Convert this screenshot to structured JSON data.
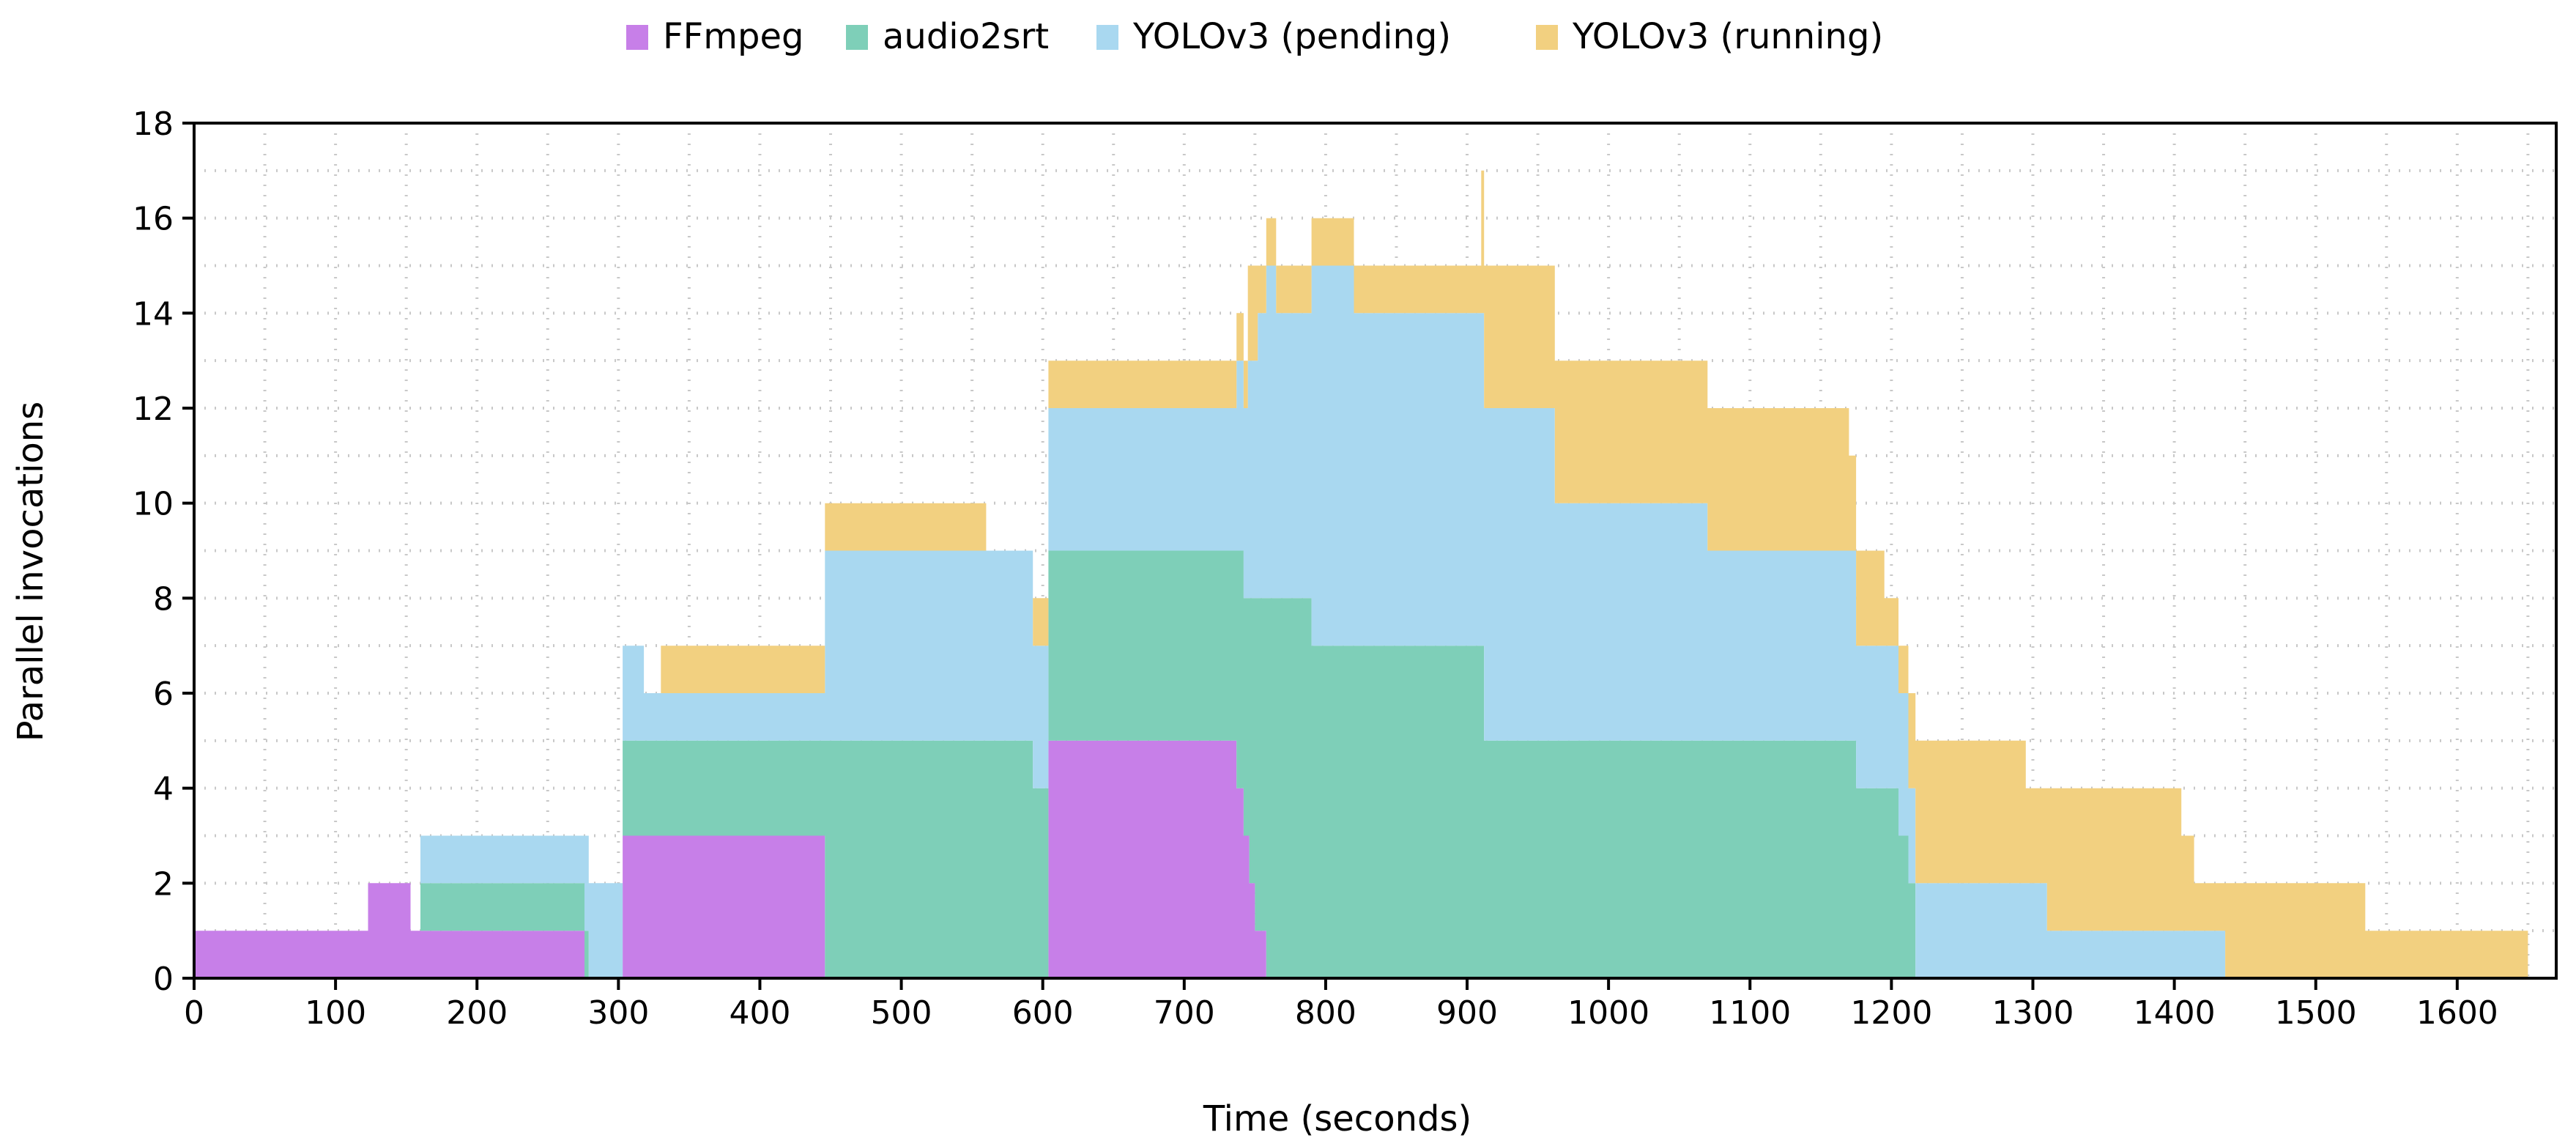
{
  "chart_data": {
    "type": "area",
    "stacked": true,
    "step": true,
    "title": "",
    "xlabel": "Time (seconds)",
    "ylabel": "Parallel invocations",
    "xlim": [
      0,
      1670
    ],
    "ylim": [
      0,
      18
    ],
    "x_ticks": [
      0,
      100,
      200,
      300,
      400,
      500,
      600,
      700,
      800,
      900,
      1000,
      1100,
      1200,
      1300,
      1400,
      1500,
      1600
    ],
    "x_tick_labels": [
      "0",
      "100",
      "200",
      "300",
      "400",
      "500",
      "600",
      "700",
      "800",
      "900",
      "1000",
      "1100",
      "1200",
      "1300",
      "1400",
      "1500",
      "1600"
    ],
    "y_ticks": [
      0,
      2,
      4,
      6,
      8,
      10,
      12,
      14,
      16,
      18
    ],
    "y_tick_labels": [
      "0",
      "2",
      "4",
      "6",
      "8",
      "10",
      "12",
      "14",
      "16",
      "18"
    ],
    "grid": "dotted",
    "legend_position": "top-center",
    "series": [
      {
        "name": "FFmpeg",
        "color": "#c77fe8",
        "points": [
          [
            0,
            1
          ],
          [
            122,
            1
          ],
          [
            123,
            2
          ],
          [
            150,
            2
          ],
          [
            153,
            1
          ],
          [
            274,
            1
          ],
          [
            276,
            0
          ],
          [
            300,
            0
          ],
          [
            303,
            3
          ],
          [
            443,
            3
          ],
          [
            446,
            0
          ],
          [
            600,
            0
          ],
          [
            604,
            5
          ],
          [
            734,
            5
          ],
          [
            737,
            4
          ],
          [
            742,
            3
          ],
          [
            746,
            2
          ],
          [
            750,
            1
          ],
          [
            755,
            1
          ],
          [
            758,
            0
          ],
          [
            1650,
            0
          ]
        ]
      },
      {
        "name": "audio2srt",
        "color": "#7ecfb8",
        "points": [
          [
            0,
            0
          ],
          [
            158,
            0
          ],
          [
            160,
            1
          ],
          [
            276,
            1
          ],
          [
            279,
            0
          ],
          [
            300,
            0
          ],
          [
            303,
            2
          ],
          [
            443,
            2
          ],
          [
            446,
            5
          ],
          [
            590,
            5
          ],
          [
            593,
            4
          ],
          [
            600,
            4
          ],
          [
            604,
            4
          ],
          [
            734,
            4
          ],
          [
            737,
            5
          ],
          [
            742,
            5
          ],
          [
            746,
            6
          ],
          [
            750,
            7
          ],
          [
            758,
            8
          ],
          [
            790,
            7
          ],
          [
            910,
            7
          ],
          [
            912,
            5
          ],
          [
            1170,
            5
          ],
          [
            1175,
            4
          ],
          [
            1200,
            4
          ],
          [
            1205,
            3
          ],
          [
            1212,
            2
          ],
          [
            1217,
            0
          ],
          [
            1650,
            0
          ]
        ]
      },
      {
        "name": "YOLOv3 (pending)",
        "color": "#a9d8f0",
        "points": [
          [
            0,
            0
          ],
          [
            158,
            0
          ],
          [
            160,
            1
          ],
          [
            274,
            1
          ],
          [
            276,
            2
          ],
          [
            296,
            2
          ],
          [
            300,
            2
          ],
          [
            303,
            2
          ],
          [
            318,
            1
          ],
          [
            443,
            1
          ],
          [
            446,
            4
          ],
          [
            590,
            4
          ],
          [
            593,
            3
          ],
          [
            600,
            3
          ],
          [
            604,
            3
          ],
          [
            734,
            3
          ],
          [
            737,
            4
          ],
          [
            745,
            5
          ],
          [
            752,
            6
          ],
          [
            758,
            7
          ],
          [
            765,
            6
          ],
          [
            790,
            8
          ],
          [
            820,
            7
          ],
          [
            910,
            7
          ],
          [
            912,
            7
          ],
          [
            935,
            7
          ],
          [
            962,
            5
          ],
          [
            1070,
            4
          ],
          [
            1170,
            4
          ],
          [
            1175,
            3
          ],
          [
            1195,
            3
          ],
          [
            1205,
            3
          ],
          [
            1212,
            2
          ],
          [
            1217,
            2
          ],
          [
            1310,
            1
          ],
          [
            1434,
            1
          ],
          [
            1436,
            0
          ],
          [
            1650,
            0
          ]
        ]
      },
      {
        "name": "YOLOv3 (running)",
        "color": "#f2d080",
        "points": [
          [
            0,
            0
          ],
          [
            318,
            0
          ],
          [
            330,
            1
          ],
          [
            443,
            1
          ],
          [
            446,
            1
          ],
          [
            555,
            1
          ],
          [
            560,
            0
          ],
          [
            590,
            0
          ],
          [
            593,
            1
          ],
          [
            600,
            1
          ],
          [
            604,
            1
          ],
          [
            734,
            1
          ],
          [
            737,
            1
          ],
          [
            745,
            2
          ],
          [
            752,
            1
          ],
          [
            758,
            1
          ],
          [
            765,
            1
          ],
          [
            790,
            1
          ],
          [
            820,
            1
          ],
          [
            910,
            3
          ],
          [
            935,
            3
          ],
          [
            962,
            3
          ],
          [
            1055,
            3
          ],
          [
            1070,
            3
          ],
          [
            1170,
            2
          ],
          [
            1175,
            2
          ],
          [
            1195,
            1
          ],
          [
            1205,
            1
          ],
          [
            1212,
            2
          ],
          [
            1217,
            3
          ],
          [
            1295,
            2
          ],
          [
            1310,
            3
          ],
          [
            1405,
            2
          ],
          [
            1414,
            1
          ],
          [
            1434,
            1
          ],
          [
            1436,
            2
          ],
          [
            1532,
            2
          ],
          [
            1535,
            1
          ],
          [
            1650,
            1
          ]
        ]
      }
    ]
  }
}
